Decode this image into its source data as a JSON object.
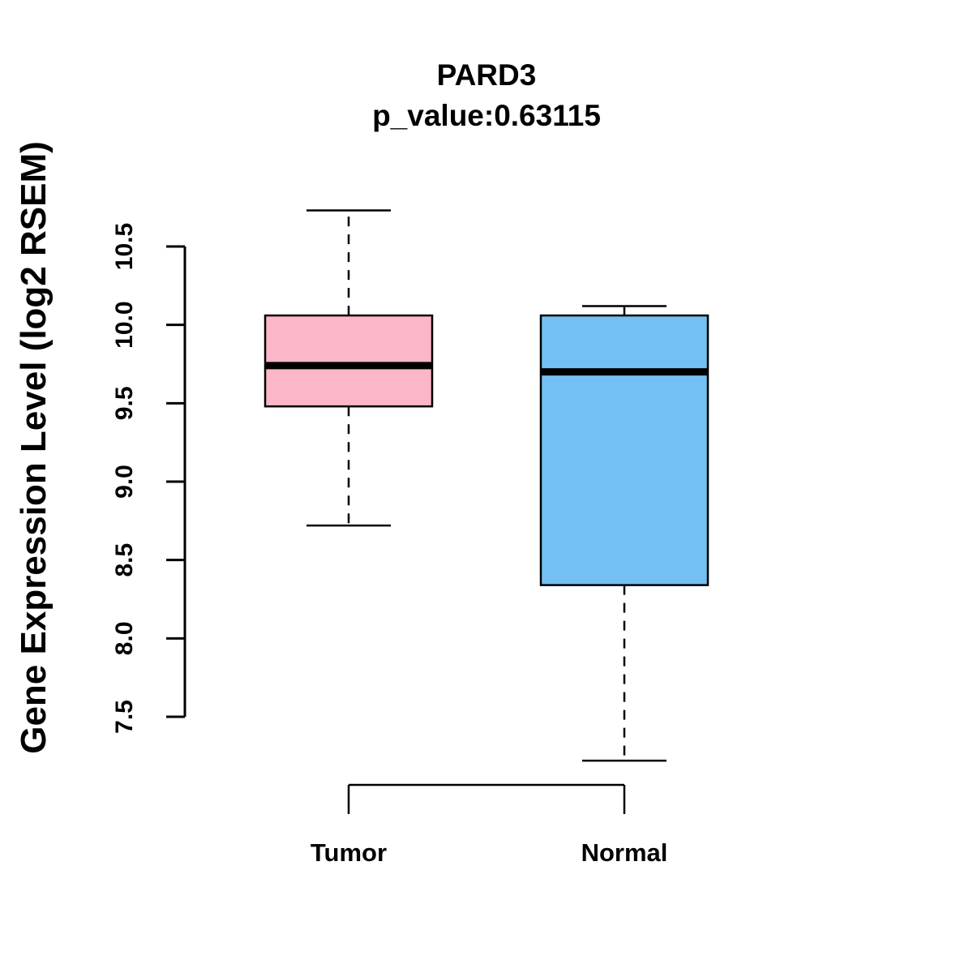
{
  "chart_data": {
    "type": "boxplot",
    "title": "PARD3",
    "subtitle": "p_value:0.63115",
    "ylabel": "Gene Expression Level (log2 RSEM)",
    "xlabel": "",
    "yticks": [
      7.5,
      8.0,
      8.5,
      9.0,
      9.5,
      10.0,
      10.5
    ],
    "ylim": [
      7.1,
      10.85
    ],
    "grid": false,
    "legend": "none",
    "categories": [
      "Tumor",
      "Normal"
    ],
    "series": [
      {
        "name": "Tumor",
        "color": "#FBB6C7",
        "lower_whisker": 8.72,
        "q1": 9.48,
        "median": 9.74,
        "q3": 10.06,
        "upper_whisker": 10.73
      },
      {
        "name": "Normal",
        "color": "#74C0F3",
        "lower_whisker": 7.22,
        "q1": 8.34,
        "median": 9.7,
        "q3": 10.06,
        "upper_whisker": 10.12
      }
    ],
    "stroke_color": "#000000"
  }
}
